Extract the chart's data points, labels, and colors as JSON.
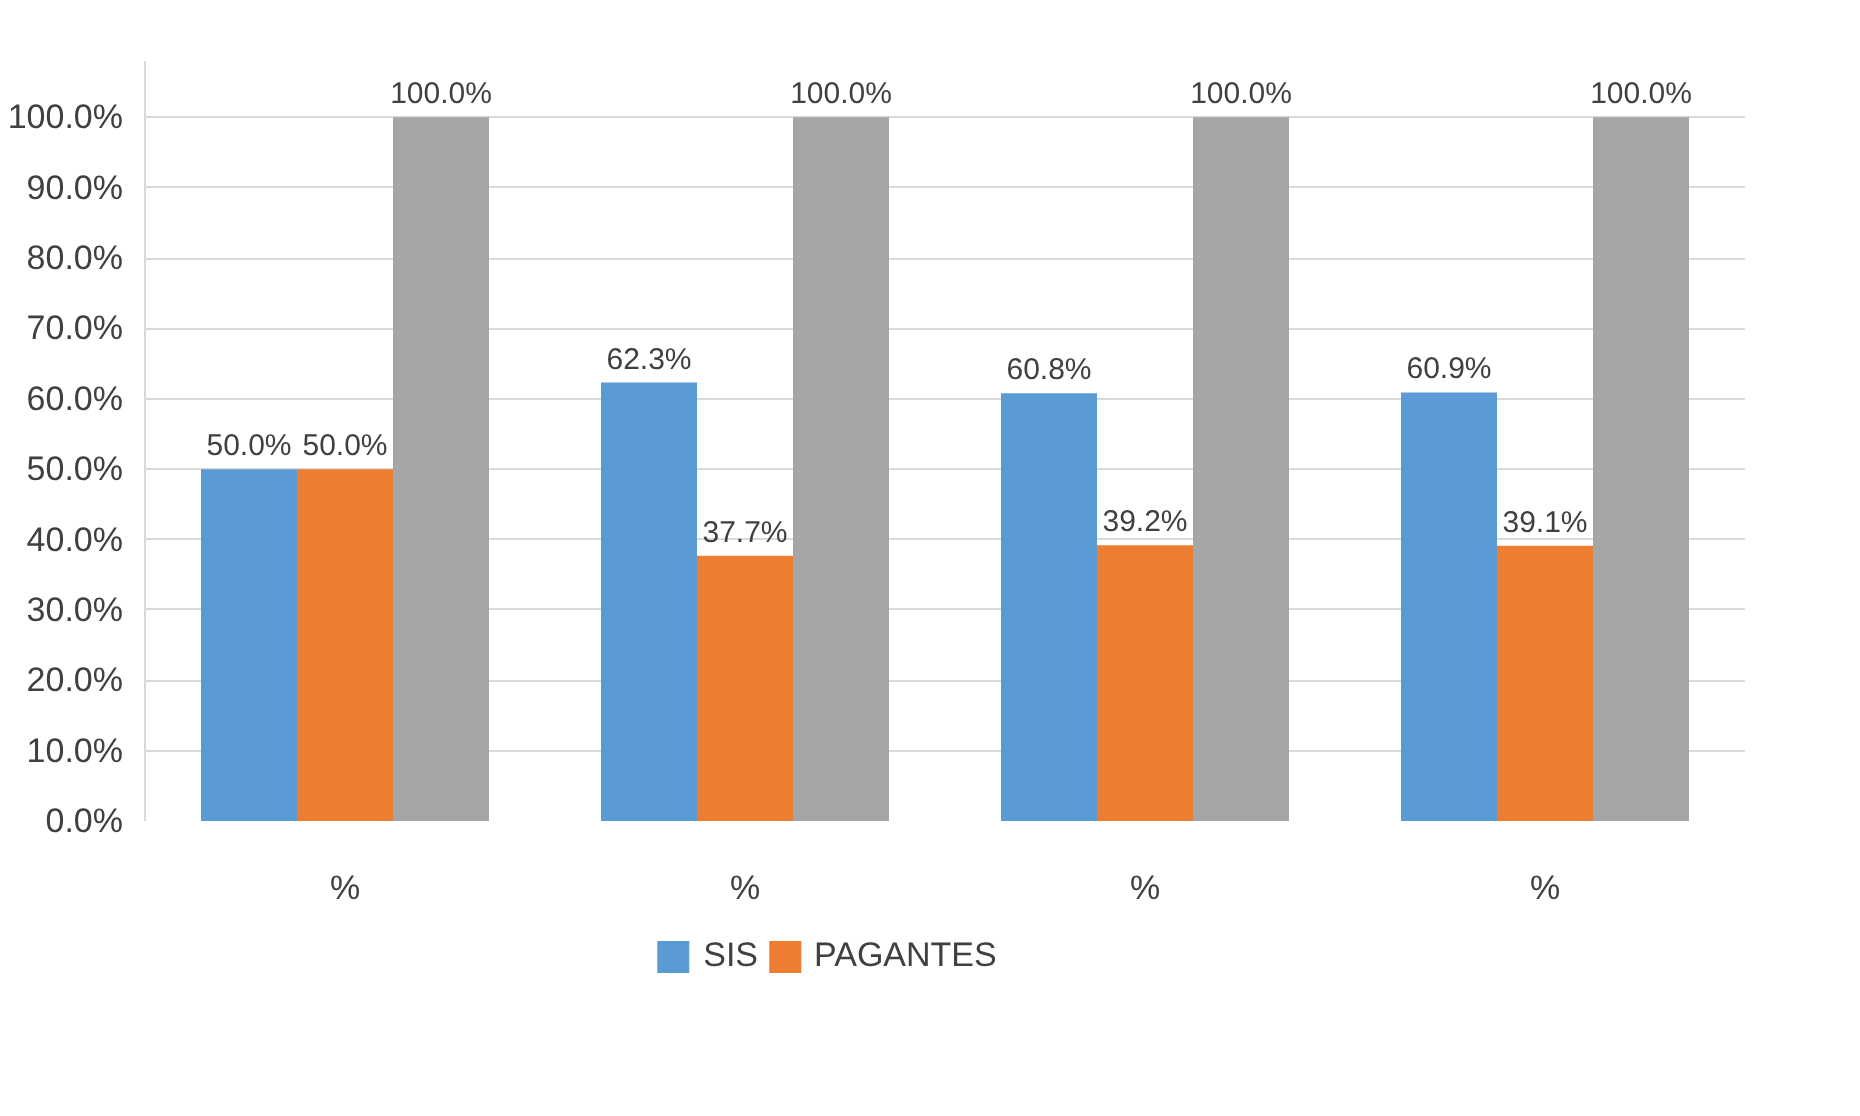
{
  "chart_data": {
    "type": "bar",
    "categories": [
      "%",
      "%",
      "%",
      "%"
    ],
    "series": [
      {
        "name": "SIS",
        "color": "#5b9bd5",
        "values": [
          50.0,
          62.3,
          60.8,
          60.9
        ],
        "value_labels": [
          "50.0%",
          "62.3%",
          "60.8%",
          "60.9%"
        ]
      },
      {
        "name": "PAGANTES",
        "color": "#ed7d31",
        "values": [
          50.0,
          37.7,
          39.2,
          39.1
        ],
        "value_labels": [
          "50.0%",
          "37.7%",
          "39.2%",
          "39.1%"
        ]
      },
      {
        "color": "#a5a5a5",
        "values": [
          100.0,
          100.0,
          100.0,
          100.0
        ],
        "value_labels": [
          "100.0%",
          "100.0%",
          "100.0%",
          "100.0%"
        ]
      }
    ],
    "ylim": [
      0,
      108
    ],
    "yticks": [
      {
        "value": 0,
        "label": "0.0%"
      },
      {
        "value": 10,
        "label": "10.0%"
      },
      {
        "value": 20,
        "label": "20.0%"
      },
      {
        "value": 30,
        "label": "30.0%"
      },
      {
        "value": 40,
        "label": "40.0%"
      },
      {
        "value": 50,
        "label": "50.0%"
      },
      {
        "value": 60,
        "label": "60.0%"
      },
      {
        "value": 70,
        "label": "70.0%"
      },
      {
        "value": 80,
        "label": "80.0%"
      },
      {
        "value": 90,
        "label": "90.0%"
      },
      {
        "value": 100,
        "label": "100.0%"
      }
    ],
    "grid": "y",
    "legend": "bottom"
  }
}
